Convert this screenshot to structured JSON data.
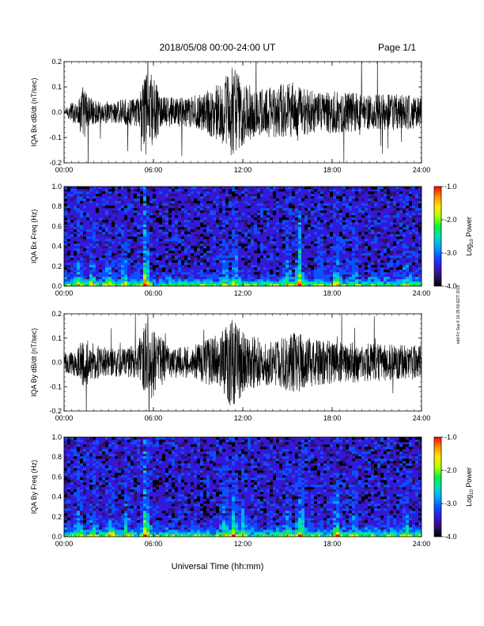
{
  "header": {
    "date_range": "2018/05/08   00:00-24:00 UT",
    "page": "Page 1/1"
  },
  "xlabel": "Universal Time (hh:mm)",
  "side_stamp": "ndd Fri Sep 6 16:35:50 EDT 2019",
  "colorbar": {
    "label": "Log",
    "label_subscript": "10",
    "label_suffix": " Power",
    "ticks": [
      "-1.0",
      "-2.0",
      "-3.0",
      "-4.0"
    ],
    "range": [
      -4.0,
      -1.0
    ],
    "colors": [
      "#000000",
      "#30106a",
      "#3418d8",
      "#0a52ff",
      "#00a8ff",
      "#00e0b0",
      "#10f040",
      "#b0ff00",
      "#ffe800",
      "#ff9000",
      "#ff0000"
    ]
  },
  "chart_data": [
    {
      "type": "line",
      "ylabel": "IQA Bx dB/dt (nT/sec)",
      "xlim": [
        0,
        24
      ],
      "ylim": [
        -0.2,
        0.2
      ],
      "yticks": [
        "0.2",
        "0.1",
        "0.0",
        "-0.1",
        "-0.2"
      ],
      "xticks": [
        "00:00",
        "06:00",
        "12:00",
        "18:00",
        "24:00"
      ],
      "activity_hours": [
        [
          0.0,
          0.06
        ],
        [
          0.6,
          0.35
        ],
        [
          1.0,
          0.4
        ],
        [
          1.2,
          0.9
        ],
        [
          2.0,
          0.35
        ],
        [
          3.0,
          0.35
        ],
        [
          4.0,
          0.4
        ],
        [
          5.0,
          0.45
        ],
        [
          5.5,
          1.3
        ],
        [
          6.0,
          1.1
        ],
        [
          6.5,
          0.5
        ],
        [
          7.5,
          0.45
        ],
        [
          9.0,
          0.55
        ],
        [
          10.5,
          0.9
        ],
        [
          11.3,
          1.4
        ],
        [
          12.0,
          1.0
        ],
        [
          13.0,
          0.7
        ],
        [
          14.5,
          0.85
        ],
        [
          15.5,
          0.95
        ],
        [
          16.0,
          0.75
        ],
        [
          17.0,
          0.6
        ],
        [
          18.0,
          0.65
        ],
        [
          19.5,
          0.6
        ],
        [
          21.0,
          0.55
        ],
        [
          22.5,
          0.55
        ],
        [
          24.0,
          0.5
        ]
      ]
    },
    {
      "type": "heatmap",
      "ylabel": "IQA Bx Freq (Hz)",
      "xlim": [
        0,
        24
      ],
      "ylim": [
        0.0,
        1.0
      ],
      "yticks": [
        "1.0",
        "0.8",
        "0.6",
        "0.4",
        "0.2",
        "0.0"
      ],
      "xticks": [
        "00:00",
        "06:00",
        "12:00",
        "18:00",
        "24:00"
      ],
      "bursts": [
        [
          1.0,
          0.55
        ],
        [
          1.9,
          0.5
        ],
        [
          3.0,
          0.45
        ],
        [
          4.0,
          0.55
        ],
        [
          5.5,
          1.0
        ],
        [
          10.8,
          0.5
        ],
        [
          11.5,
          0.65
        ],
        [
          15.0,
          0.45
        ],
        [
          15.8,
          0.85
        ],
        [
          17.2,
          0.35
        ],
        [
          18.3,
          0.7
        ],
        [
          19.5,
          0.4
        ],
        [
          23.0,
          0.45
        ]
      ]
    },
    {
      "type": "line",
      "ylabel": "IQA By dB/dt (nT/sec)",
      "xlim": [
        0,
        24
      ],
      "ylim": [
        -0.2,
        0.2
      ],
      "yticks": [
        "0.2",
        "0.1",
        "0.0",
        "-0.1",
        "-0.2"
      ],
      "xticks": [
        "00:00",
        "06:00",
        "12:00",
        "18:00",
        "24:00"
      ],
      "activity_hours": [
        [
          0.0,
          0.3
        ],
        [
          1.0,
          0.5
        ],
        [
          1.2,
          0.8
        ],
        [
          2.5,
          0.5
        ],
        [
          4.0,
          0.45
        ],
        [
          5.0,
          0.6
        ],
        [
          5.5,
          1.3
        ],
        [
          6.0,
          1.1
        ],
        [
          7.0,
          0.5
        ],
        [
          8.5,
          0.5
        ],
        [
          10.5,
          0.9
        ],
        [
          11.3,
          1.5
        ],
        [
          12.0,
          1.0
        ],
        [
          13.0,
          0.8
        ],
        [
          14.0,
          0.7
        ],
        [
          15.5,
          1.0
        ],
        [
          16.3,
          0.8
        ],
        [
          17.5,
          0.7
        ],
        [
          19.0,
          0.65
        ],
        [
          21.0,
          0.6
        ],
        [
          24.0,
          0.55
        ]
      ]
    },
    {
      "type": "heatmap",
      "ylabel": "IQA By Freq (Hz)",
      "xlim": [
        0,
        24
      ],
      "ylim": [
        0.0,
        1.0
      ],
      "yticks": [
        "1.0",
        "0.8",
        "0.6",
        "0.4",
        "0.2",
        "0.0"
      ],
      "xticks": [
        "00:00",
        "06:00",
        "12:00",
        "18:00",
        "24:00"
      ],
      "bursts": [
        [
          1.0,
          0.55
        ],
        [
          2.0,
          0.5
        ],
        [
          3.2,
          0.5
        ],
        [
          4.2,
          0.55
        ],
        [
          5.5,
          1.0
        ],
        [
          10.8,
          0.6
        ],
        [
          11.4,
          0.8
        ],
        [
          12.0,
          0.55
        ],
        [
          15.0,
          0.5
        ],
        [
          15.9,
          0.9
        ],
        [
          18.3,
          0.75
        ],
        [
          19.5,
          0.4
        ],
        [
          23.0,
          0.45
        ]
      ]
    }
  ]
}
